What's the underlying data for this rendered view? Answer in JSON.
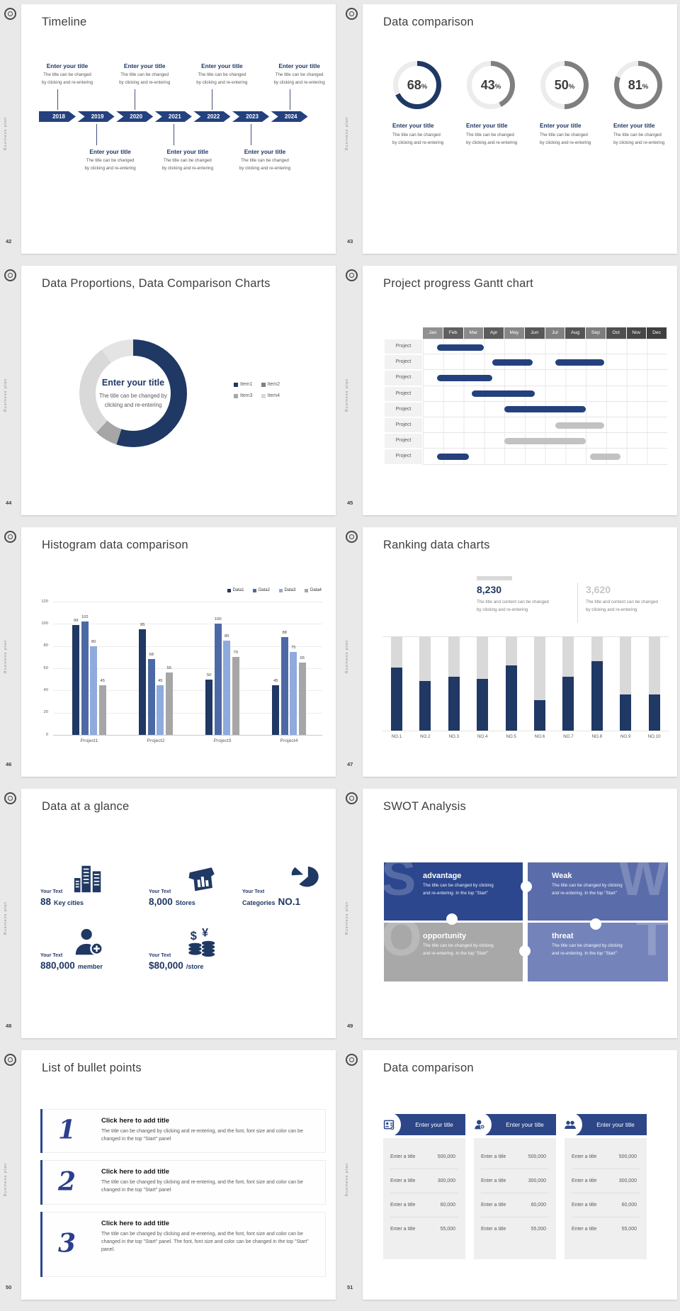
{
  "board": {
    "vertical_label": "Business plan"
  },
  "chart_data": [
    {
      "slide": "43",
      "type": "pie",
      "subtype": "progress-rings",
      "title": "Data comparison",
      "values": [
        68,
        43,
        50,
        81
      ],
      "unit": "%",
      "ring_colors": [
        "#1f3864",
        "#7f7f7f",
        "#7f7f7f",
        "#7f7f7f"
      ],
      "track_color": "#ececec"
    },
    {
      "slide": "44",
      "type": "pie",
      "title": "Data Proportions, Data Comparison Charts",
      "labels": [
        "Item1",
        "Item2",
        "Item3",
        "Item4"
      ],
      "values": [
        55,
        7,
        28,
        10
      ],
      "colors": [
        "#1f3864",
        "#a6a6a6",
        "#d9d9d9",
        "#e4e4e4"
      ],
      "legend_colors": [
        "#1f3864",
        "#7f7f7f",
        "#a6a6a6",
        "#d9d9d9"
      ],
      "center_title": "Enter your title",
      "center_body": "The title can be changed by clicking and re-entering"
    },
    {
      "slide": "45",
      "type": "table",
      "subtype": "gantt",
      "title": "Project progress Gantt chart",
      "columns": [
        "Jan",
        "Feb",
        "Mar",
        "Apr",
        "May",
        "Jun",
        "Jul",
        "Aug",
        "Sep",
        "Oct",
        "Nov",
        "Dec"
      ],
      "row_label": "Project",
      "bars": [
        [
          [
            0.7,
            3.0,
            "navy"
          ]
        ],
        [
          [
            3.4,
            5.4,
            "navy"
          ],
          [
            6.5,
            8.9,
            "navy"
          ]
        ],
        [
          [
            0.7,
            3.4,
            "navy"
          ]
        ],
        [
          [
            2.4,
            5.5,
            "navy"
          ]
        ],
        [
          [
            4.0,
            8.0,
            "navy"
          ]
        ],
        [
          [
            6.5,
            8.9,
            "gray"
          ]
        ],
        [
          [
            4.0,
            8.0,
            "gray"
          ]
        ],
        [
          [
            0.7,
            2.25,
            "navy"
          ],
          [
            8.2,
            9.7,
            "gray"
          ]
        ]
      ],
      "bar_colors": {
        "navy": "#24417e",
        "gray": "#c2c2c2"
      }
    },
    {
      "slide": "46",
      "type": "bar",
      "title": "Histogram data comparison",
      "categories": [
        "Project1",
        "Project2",
        "Project3",
        "Project4"
      ],
      "series": [
        {
          "name": "Data1",
          "color": "#1f3864",
          "values": [
            99,
            95,
            50,
            45
          ]
        },
        {
          "name": "Data2",
          "color": "#4d69a5",
          "values": [
            102,
            68,
            100,
            88
          ]
        },
        {
          "name": "Data3",
          "color": "#8faadc",
          "values": [
            80,
            45,
            85,
            75
          ]
        },
        {
          "name": "Data4",
          "color": "#a6a6a6",
          "values": [
            45,
            56,
            70,
            65
          ]
        }
      ],
      "ylim": [
        0,
        120
      ],
      "yticks": [
        0,
        20,
        40,
        60,
        80,
        100,
        120
      ],
      "legend_position": "top-right",
      "grid": true
    },
    {
      "slide": "47",
      "type": "bar",
      "subtype": "ranking-fill",
      "title": "Ranking data charts",
      "categories": [
        "NO.1",
        "NO.2",
        "NO.3",
        "NO.4",
        "NO.5",
        "NO.6",
        "NO.7",
        "NO.8",
        "NO.9",
        "NO.10"
      ],
      "fill_ratios": [
        0.67,
        0.53,
        0.57,
        0.55,
        0.69,
        0.32,
        0.57,
        0.74,
        0.38,
        0.38
      ],
      "bar_color": "#1f3864",
      "track_color": "#d9d9d9",
      "stats": [
        {
          "value": "8,230",
          "color": "#1f3864",
          "body_lines": [
            "The title and content can be changed",
            "by clicking and re-entering"
          ]
        },
        {
          "value": "3,620",
          "color": "#c6c6c6",
          "body_lines": [
            "The title and content can be changed",
            "by clicking and re-entering"
          ]
        }
      ]
    }
  ],
  "slides": [
    {
      "number": "42",
      "kind": "timeline",
      "title": "Timeline",
      "years": [
        "2018",
        "2019",
        "2020",
        "2021",
        "2022",
        "2023",
        "2024"
      ],
      "entry_title": "Enter your title",
      "entry_body_lines": [
        "The title can be changed",
        "by clicking and re-entering"
      ],
      "top_entry_year_indexes": [
        0,
        2,
        4,
        6
      ],
      "bottom_entry_year_indexes": [
        1,
        3,
        5
      ]
    },
    {
      "number": "43",
      "kind": "rings",
      "title": "Data comparison",
      "chart": 0,
      "entry_title": "Enter your title",
      "entry_body_lines": [
        "The title can be changed",
        "by clicking and re-entering"
      ]
    },
    {
      "number": "44",
      "kind": "donut",
      "title": "Data Proportions, Data Comparison Charts",
      "chart": 1,
      "center_title": "Enter your title",
      "center_body_lines": [
        "The title can be changed by",
        "clicking and re-entering"
      ]
    },
    {
      "number": "45",
      "kind": "gantt",
      "title": "Project progress Gantt chart",
      "chart": 2
    },
    {
      "number": "46",
      "kind": "histogram",
      "title": "Histogram data comparison",
      "chart": 3
    },
    {
      "number": "47",
      "kind": "ranking",
      "title": "Ranking data charts",
      "chart": 4
    },
    {
      "number": "48",
      "kind": "glance",
      "title": "Data at a glance",
      "items": [
        {
          "label": "Your Text",
          "value": "88",
          "unit": "Key cities",
          "icon": "city-skyline-icon",
          "value_first": true
        },
        {
          "label": "Your Text",
          "value": "8,000",
          "unit": "Stores",
          "icon": "store-icon",
          "value_first": true
        },
        {
          "label": "Your Text",
          "value": "NO.1",
          "unit": "Categories",
          "icon": "category-pie-icon",
          "value_first": false
        },
        {
          "label": "Your Text",
          "value": "880,000",
          "unit": "member",
          "icon": "member-add-icon",
          "value_first": true
        },
        {
          "label": "Your Text",
          "value": "$80,000",
          "unit": "/store",
          "icon": "money-coins-icon",
          "value_first": true
        }
      ]
    },
    {
      "number": "49",
      "kind": "swot",
      "title": "SWOT Analysis",
      "pieces": [
        {
          "letter": "S",
          "word": "advantage",
          "body_lines": [
            "The title can be changed by clicking",
            "and re-entering. In the top \"Start\""
          ],
          "color": "#2c478e",
          "text_x": "right",
          "letter_side": "left"
        },
        {
          "letter": "W",
          "word": "Weak",
          "body_lines": [
            "The title can be changed by clicking",
            "and re-entering. In the top \"Start\""
          ],
          "color": "#5b6cab",
          "text_x": "left",
          "letter_side": "right"
        },
        {
          "letter": "O",
          "word": "opportunity",
          "body_lines": [
            "The title can be changed by clicking",
            "and re-entering. In the top \"Start\""
          ],
          "color": "#a8a8a8",
          "text_x": "right",
          "letter_side": "left"
        },
        {
          "letter": "T",
          "word": "threat",
          "body_lines": [
            "The title can be changed by clicking",
            "and re-entering. In the top \"Start\""
          ],
          "color": "#7484bb",
          "text_x": "left",
          "letter_side": "right"
        }
      ]
    },
    {
      "number": "50",
      "kind": "bullets",
      "title": "List of bullet points",
      "items": [
        {
          "num": "1",
          "title": "Click here to add title",
          "body": "The title can be changed by clicking and re-entering, and the font, font size and color can be changed in the top \"Start\" panel"
        },
        {
          "num": "2",
          "title": "Click here to add title",
          "body": "The title can be changed by clicking and re-entering, and the font, font size and color can be changed in the top \"Start\" panel"
        },
        {
          "num": "3",
          "title": "Click here to add title",
          "body": "The title can be changed by clicking and re-entering, and the font, font size and color can be changed in the top \"Start\" panel. The font, font size and color can be changed in the top \"Start\" panel."
        }
      ]
    },
    {
      "number": "51",
      "kind": "cards",
      "title": "Data comparison",
      "cards": [
        {
          "icon": "id-card-icon",
          "title": "Enter your title",
          "rows": [
            {
              "label": "Enter a title",
              "value": "500,000"
            },
            {
              "label": "Enter a title",
              "value": "300,000"
            },
            {
              "label": "Enter a title",
              "value": "60,000"
            },
            {
              "label": "Enter a title",
              "value": "55,000"
            }
          ]
        },
        {
          "icon": "person-add-icon",
          "title": "Enter your title",
          "rows": [
            {
              "label": "Enter a title",
              "value": "500,000"
            },
            {
              "label": "Enter a title",
              "value": "300,000"
            },
            {
              "label": "Enter a title",
              "value": "60,000"
            },
            {
              "label": "Enter a title",
              "value": "55,000"
            }
          ]
        },
        {
          "icon": "team-icon",
          "title": "Enter your title",
          "rows": [
            {
              "label": "Enter a title",
              "value": "500,000"
            },
            {
              "label": "Enter a title",
              "value": "300,000"
            },
            {
              "label": "Enter a title",
              "value": "60,000"
            },
            {
              "label": "Enter a title",
              "value": "55,000"
            }
          ]
        }
      ]
    }
  ]
}
